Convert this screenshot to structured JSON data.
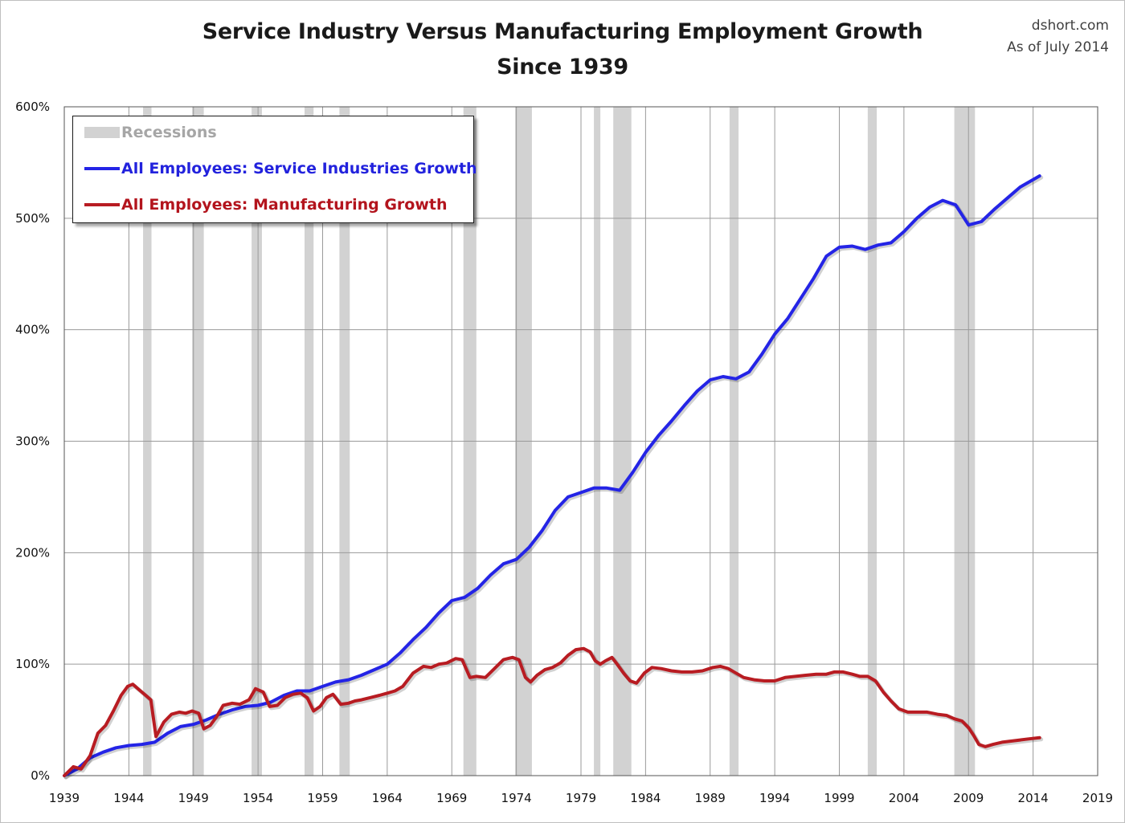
{
  "header": {
    "title_line1": "Service Industry Versus Manufacturing Employment Growth",
    "title_line2": "Since 1939",
    "source": "dshort.com",
    "as_of": "As of July 2014"
  },
  "legend": {
    "recessions": "Recessions",
    "service": "All Employees: Service Industries Growth",
    "manufacturing": "All Employees: Manufacturing Growth"
  },
  "colors": {
    "service": "#2424e6",
    "manufacturing": "#b81c22",
    "recession": "#d2d2d2",
    "grid": "#9a9a9a"
  },
  "chart_data": {
    "type": "line",
    "title": "Service Industry Versus Manufacturing Employment Growth Since 1939",
    "xlabel": "",
    "ylabel": "",
    "xlim": [
      1939,
      2019
    ],
    "ylim": [
      0,
      600
    ],
    "x_ticks": [
      "1939",
      "1944",
      "1949",
      "1954",
      "1959",
      "1964",
      "1969",
      "1974",
      "1979",
      "1984",
      "1989",
      "1994",
      "1999",
      "2004",
      "2009",
      "2014",
      "2019"
    ],
    "y_ticks": [
      "0%",
      "100%",
      "200%",
      "300%",
      "400%",
      "500%",
      "600%"
    ],
    "y_tick_values": [
      0,
      100,
      200,
      300,
      400,
      500,
      600
    ],
    "grid": true,
    "legend_position": "top-left",
    "recessions": [
      [
        1945.1,
        1945.75
      ],
      [
        1948.9,
        1949.8
      ],
      [
        1953.5,
        1954.3
      ],
      [
        1957.6,
        1958.3
      ],
      [
        1960.3,
        1961.1
      ],
      [
        1969.9,
        1970.9
      ],
      [
        1973.9,
        1975.2
      ],
      [
        1980.0,
        1980.5
      ],
      [
        1981.5,
        1982.9
      ],
      [
        1990.5,
        1991.2
      ],
      [
        2001.2,
        2001.9
      ],
      [
        2007.9,
        2009.5
      ]
    ],
    "series": [
      {
        "name": "All Employees: Service Industries Growth",
        "x": [
          1939,
          1940,
          1941,
          1942,
          1943,
          1944,
          1945,
          1946,
          1947,
          1948,
          1949,
          1950,
          1951,
          1952,
          1953,
          1954,
          1955,
          1956,
          1957,
          1958,
          1959,
          1960,
          1961,
          1962,
          1963,
          1964,
          1965,
          1966,
          1967,
          1968,
          1969,
          1970,
          1971,
          1972,
          1973,
          1974,
          1975,
          1976,
          1977,
          1978,
          1979,
          1980,
          1981,
          1982,
          1983,
          1984,
          1985,
          1986,
          1987,
          1988,
          1989,
          1990,
          1991,
          1992,
          1993,
          1994,
          1995,
          1996,
          1997,
          1998,
          1999,
          2000,
          2001,
          2002,
          2003,
          2004,
          2005,
          2006,
          2007,
          2008,
          2009,
          2010,
          2011,
          2012,
          2013,
          2014.5
        ],
        "values": [
          0,
          6,
          16,
          21,
          25,
          27,
          28,
          30,
          38,
          44,
          46,
          50,
          55,
          59,
          62,
          63,
          66,
          72,
          76,
          76,
          80,
          84,
          86,
          90,
          95,
          100,
          110,
          122,
          133,
          146,
          157,
          160,
          168,
          180,
          190,
          194,
          205,
          220,
          238,
          250,
          254,
          258,
          258,
          256,
          272,
          290,
          305,
          318,
          332,
          345,
          355,
          358,
          356,
          362,
          378,
          396,
          410,
          428,
          446,
          466,
          474,
          475,
          472,
          476,
          478,
          488,
          500,
          510,
          516,
          512,
          494,
          497,
          508,
          518,
          528,
          538
        ]
      },
      {
        "name": "All Employees: Manufacturing Growth",
        "x": [
          1939,
          1939.7,
          1940.3,
          1941,
          1941.6,
          1942.2,
          1942.8,
          1943.4,
          1943.9,
          1944.3,
          1944.8,
          1945.3,
          1945.7,
          1946.1,
          1946.7,
          1947.3,
          1947.9,
          1948.4,
          1948.9,
          1949.4,
          1949.8,
          1950.3,
          1950.8,
          1951.3,
          1952,
          1952.6,
          1953.3,
          1953.8,
          1954.4,
          1954.9,
          1955.5,
          1956.1,
          1956.7,
          1957.3,
          1957.8,
          1958.3,
          1958.8,
          1959.3,
          1959.8,
          1960.4,
          1961,
          1961.5,
          1962,
          1962.7,
          1963.4,
          1964,
          1964.6,
          1965.2,
          1966,
          1966.8,
          1967.4,
          1968,
          1968.6,
          1969.3,
          1969.8,
          1970.4,
          1970.9,
          1971.6,
          1972.3,
          1973,
          1973.7,
          1974.2,
          1974.7,
          1975.1,
          1975.6,
          1976.2,
          1976.8,
          1977.4,
          1978,
          1978.6,
          1979.2,
          1979.7,
          1980.1,
          1980.5,
          1980.9,
          1981.4,
          1981.8,
          1982.3,
          1982.8,
          1983.3,
          1983.9,
          1984.5,
          1985.2,
          1986,
          1986.8,
          1987.6,
          1988.4,
          1989.2,
          1989.8,
          1990.4,
          1991,
          1991.6,
          1992.4,
          1993.2,
          1994,
          1994.8,
          1995.6,
          1996.4,
          1997.2,
          1998,
          1998.6,
          1999.3,
          2000,
          2000.6,
          2001.2,
          2001.8,
          2002.4,
          2003,
          2003.6,
          2004.3,
          2005,
          2005.8,
          2006.6,
          2007.3,
          2007.9,
          2008.5,
          2009,
          2009.4,
          2009.8,
          2010.3,
          2010.9,
          2011.6,
          2012.3,
          2013,
          2013.7,
          2014.5
        ],
        "values": [
          0,
          8,
          6,
          18,
          38,
          45,
          58,
          72,
          80,
          82,
          77,
          72,
          68,
          35,
          48,
          55,
          57,
          56,
          58,
          56,
          42,
          45,
          53,
          63,
          65,
          64,
          68,
          78,
          75,
          62,
          63,
          70,
          73,
          74,
          70,
          58,
          62,
          70,
          73,
          64,
          65,
          67,
          68,
          70,
          72,
          74,
          76,
          80,
          92,
          98,
          97,
          100,
          101,
          105,
          104,
          88,
          89,
          88,
          96,
          104,
          106,
          104,
          88,
          84,
          90,
          95,
          97,
          101,
          108,
          113,
          114,
          111,
          103,
          100,
          103,
          106,
          100,
          92,
          85,
          83,
          92,
          97,
          96,
          94,
          93,
          93,
          94,
          97,
          98,
          96,
          92,
          88,
          86,
          85,
          85,
          88,
          89,
          90,
          91,
          91,
          93,
          93,
          91,
          89,
          89,
          85,
          75,
          67,
          60,
          57,
          57,
          57,
          55,
          54,
          51,
          49,
          43,
          36,
          28,
          26,
          28,
          30,
          31,
          32,
          33,
          34
        ]
      }
    ]
  }
}
